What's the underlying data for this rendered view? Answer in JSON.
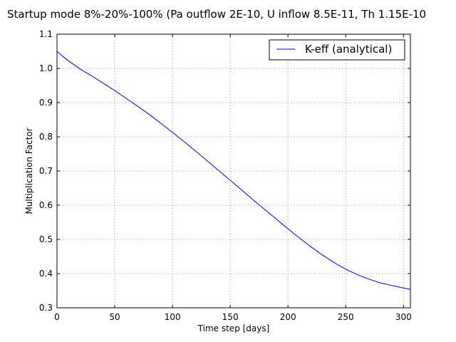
{
  "chart_data": {
    "type": "line",
    "title": "Startup mode 8%-20%-100% (Pa outflow 2E-10, U inflow 8.5E-11, Th 1.15E-10",
    "xlabel": "Time step [days]",
    "ylabel": "Multiplication Factor",
    "xlim": [
      0,
      306
    ],
    "ylim": [
      0.3,
      1.1
    ],
    "xticks": [
      0,
      50,
      100,
      150,
      200,
      250,
      300
    ],
    "yticks": [
      0.3,
      0.4,
      0.5,
      0.6,
      0.7,
      0.8,
      0.9,
      1.0,
      1.1
    ],
    "xtick_labels": [
      "0",
      "50",
      "100",
      "150",
      "200",
      "250",
      "300"
    ],
    "ytick_labels": [
      "0.3",
      "0.4",
      "0.5",
      "0.6",
      "0.7",
      "0.8",
      "0.9",
      "1.0",
      "1.1"
    ],
    "grid": true,
    "legend_position": "top-right",
    "colors": {
      "series": "#0000ff",
      "grid": "#777777",
      "axes": "#000000"
    },
    "series": [
      {
        "name": "K-eff (analytical)",
        "x": [
          0,
          5,
          10,
          15,
          20,
          25,
          30,
          40,
          50,
          60,
          70,
          80,
          90,
          100,
          110,
          120,
          130,
          140,
          150,
          160,
          170,
          180,
          190,
          200,
          210,
          220,
          230,
          240,
          250,
          260,
          270,
          280,
          290,
          300,
          306
        ],
        "values": [
          1.05,
          1.035,
          1.022,
          1.01,
          0.998,
          0.988,
          0.978,
          0.957,
          0.935,
          0.912,
          0.889,
          0.865,
          0.839,
          0.813,
          0.786,
          0.758,
          0.73,
          0.701,
          0.673,
          0.644,
          0.615,
          0.587,
          0.559,
          0.531,
          0.504,
          0.478,
          0.454,
          0.432,
          0.413,
          0.397,
          0.384,
          0.373,
          0.365,
          0.358,
          0.354
        ]
      }
    ]
  }
}
